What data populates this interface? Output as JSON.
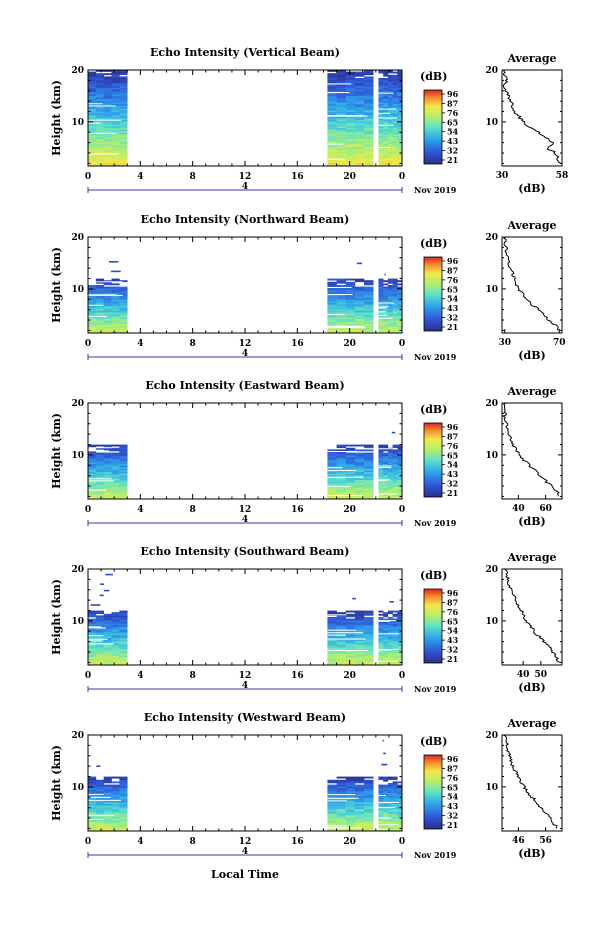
{
  "figure": {
    "xlabel": "Local Time",
    "date_label": "Nov 2019",
    "time_ticks": [
      "0",
      "4",
      "8",
      "12",
      "16",
      "20",
      "0"
    ],
    "day_marker": "4",
    "height_label": "Height (km)",
    "unit_label": "(dB)",
    "average_title": "Average",
    "average_xlabel": "(dB)",
    "colorbar_ticks": [
      "96",
      "87",
      "76",
      "65",
      "54",
      "43",
      "32",
      "21"
    ]
  },
  "chart_data": [
    {
      "type": "heatmap",
      "title": "Echo Intensity (Vertical Beam)",
      "xlim": [
        0,
        24
      ],
      "ylim": [
        1.5,
        20
      ],
      "yticks": [
        10,
        20
      ],
      "data_segments": [
        [
          0,
          3
        ],
        [
          18.3,
          21.8
        ],
        [
          22.2,
          24
        ]
      ],
      "top_height_km": 19.5,
      "level_scale": [
        21,
        96
      ],
      "profile": {
        "xlim": [
          30,
          58
        ],
        "xticks": [
          30,
          58
        ],
        "heights_km": [
          2,
          3,
          4,
          5,
          6,
          7,
          8,
          9,
          10,
          11,
          12,
          13,
          14,
          15,
          16,
          17,
          18,
          19,
          20
        ],
        "values_db": [
          57,
          56,
          55,
          51,
          54,
          50,
          47,
          43,
          40,
          38,
          36,
          35,
          34,
          33,
          32,
          31,
          32,
          31,
          31
        ]
      }
    },
    {
      "type": "heatmap",
      "title": "Echo Intensity (Northward Beam)",
      "xlim": [
        0,
        24
      ],
      "ylim": [
        1.5,
        20
      ],
      "yticks": [
        10,
        20
      ],
      "data_segments": [
        [
          0,
          3
        ],
        [
          18.3,
          21.8
        ],
        [
          22.2,
          24
        ]
      ],
      "top_height_km": 11.5,
      "level_scale": [
        21,
        96
      ],
      "profile": {
        "xlim": [
          28,
          72
        ],
        "xticks": [
          30,
          70
        ],
        "heights_km": [
          2,
          3,
          4,
          5,
          6,
          7,
          8,
          9,
          10,
          11,
          12,
          13,
          14,
          15,
          16,
          17,
          18,
          19,
          20
        ],
        "values_db": [
          70,
          67,
          62,
          58,
          55,
          50,
          46,
          43,
          40,
          38,
          37,
          36,
          34,
          33,
          32,
          31,
          31,
          30,
          30
        ]
      }
    },
    {
      "type": "heatmap",
      "title": "Echo Intensity (Eastward Beam)",
      "xlim": [
        0,
        24
      ],
      "ylim": [
        1.5,
        20
      ],
      "yticks": [
        10,
        20
      ],
      "data_segments": [
        [
          0,
          3
        ],
        [
          18.3,
          21.8
        ],
        [
          22.2,
          24
        ]
      ],
      "top_height_km": 11.5,
      "level_scale": [
        21,
        96
      ],
      "profile": {
        "xlim": [
          28,
          72
        ],
        "xticks": [
          40,
          60
        ],
        "heights_km": [
          2,
          3,
          4,
          5,
          6,
          7,
          8,
          9,
          10,
          11,
          12,
          13,
          14,
          15,
          16,
          17,
          18,
          19,
          20
        ],
        "values_db": [
          70,
          68,
          64,
          60,
          56,
          52,
          48,
          44,
          41,
          38,
          36,
          35,
          33,
          32,
          31,
          30,
          30,
          30,
          30
        ]
      }
    },
    {
      "type": "heatmap",
      "title": "Echo Intensity (Southward Beam)",
      "xlim": [
        0,
        24
      ],
      "ylim": [
        1.5,
        20
      ],
      "yticks": [
        10,
        20
      ],
      "data_segments": [
        [
          0,
          3
        ],
        [
          18.3,
          21.8
        ],
        [
          22.2,
          24
        ]
      ],
      "top_height_km": 11.5,
      "level_scale": [
        21,
        96
      ],
      "profile": {
        "xlim": [
          28,
          62
        ],
        "xticks": [
          40,
          50
        ],
        "heights_km": [
          2,
          3,
          4,
          5,
          6,
          7,
          8,
          9,
          10,
          11,
          12,
          13,
          14,
          15,
          16,
          17,
          18,
          19,
          20
        ],
        "values_db": [
          60,
          59,
          57,
          55,
          52,
          49,
          46,
          44,
          42,
          40,
          39,
          37,
          36,
          34,
          33,
          32,
          31,
          31,
          30
        ]
      }
    },
    {
      "type": "heatmap",
      "title": "Echo Intensity (Westward Beam)",
      "xlim": [
        0,
        24
      ],
      "ylim": [
        1.5,
        20
      ],
      "yticks": [
        10,
        20
      ],
      "data_segments": [
        [
          0,
          3
        ],
        [
          18.3,
          21.8
        ],
        [
          22.2,
          24
        ]
      ],
      "top_height_km": 11.5,
      "level_scale": [
        21,
        96
      ],
      "profile": {
        "xlim": [
          40,
          62
        ],
        "xticks": [
          46,
          56
        ],
        "heights_km": [
          2,
          3,
          4,
          5,
          6,
          7,
          8,
          9,
          10,
          11,
          12,
          13,
          14,
          15,
          16,
          17,
          18,
          19,
          20
        ],
        "values_db": [
          60,
          59,
          58,
          56,
          54,
          53,
          51,
          49,
          48,
          47,
          46,
          45,
          44,
          43,
          43,
          42,
          42,
          41,
          41
        ]
      }
    }
  ]
}
